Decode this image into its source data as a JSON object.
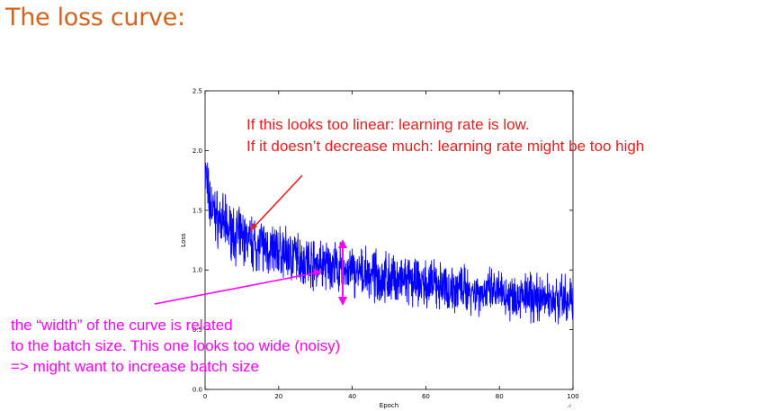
{
  "slide": {
    "title": "The loss curve:"
  },
  "annotations": {
    "red_line_1": "If this looks too linear: learning rate is low.",
    "red_line_2": "If it doesn’t decrease much: learning rate might be too high",
    "magenta_line_1": "the “width” of the curve is related",
    "magenta_line_2": "to the batch size. This one looks too wide (noisy)",
    "magenta_line_3": "=> might want to increase batch size",
    "colors": {
      "red": "#ee1c1c",
      "magenta": "#ff00ff",
      "title": "#d4631f"
    }
  },
  "chart_data": {
    "type": "line",
    "title": "",
    "xlabel": "Epoch",
    "ylabel": "Loss",
    "xlim": [
      0,
      100
    ],
    "ylim": [
      0.0,
      2.5
    ],
    "xticks": [
      "0",
      "20",
      "40",
      "60",
      "80",
      "100"
    ],
    "yticks": [
      "0.0",
      "0.5",
      "1.0",
      "1.5",
      "2.0",
      "2.5"
    ],
    "grid": false,
    "series": [
      {
        "color": "#0000ff",
        "x": [
          0,
          1,
          2,
          3,
          5,
          8,
          10,
          15,
          20,
          25,
          30,
          35,
          40,
          45,
          50,
          55,
          60,
          65,
          70,
          75,
          80,
          85,
          90,
          95,
          100
        ],
        "y": [
          1.85,
          1.6,
          1.5,
          1.45,
          1.38,
          1.3,
          1.27,
          1.2,
          1.15,
          1.1,
          1.06,
          1.02,
          0.98,
          0.95,
          0.93,
          0.9,
          0.88,
          0.86,
          0.84,
          0.82,
          0.8,
          0.78,
          0.77,
          0.76,
          0.75
        ],
        "noise_amplitude": 0.3
      }
    ]
  }
}
